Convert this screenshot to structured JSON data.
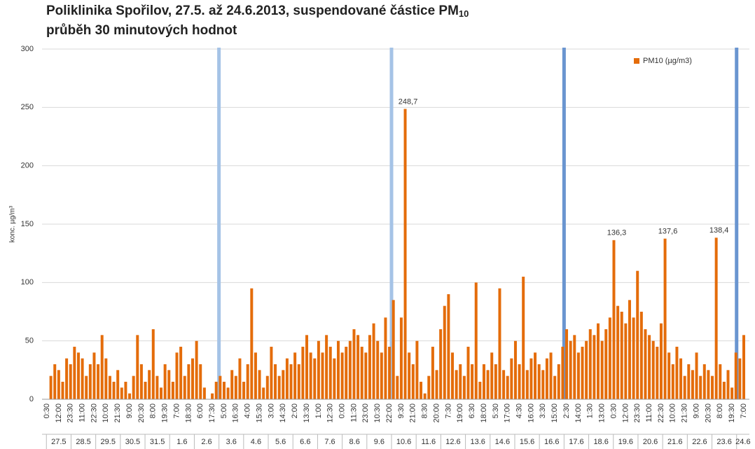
{
  "chart_data": {
    "type": "bar",
    "title": "Poliklinika Spořilov, 27.5. až 24.6.2013, suspendované částice PM",
    "title_subscript": "10",
    "subtitle": "průběh 30 minutových hodnot",
    "y_label": "konc. µg/m³",
    "categories": [
      "0:30",
      null,
      null,
      "12:00",
      null,
      null,
      "23:30",
      null,
      null,
      "11:00",
      null,
      null,
      "22:30",
      null,
      null,
      "10:00",
      null,
      null,
      "21:30",
      null,
      null,
      "9:00",
      null,
      null,
      "20:30",
      null,
      null,
      "8:00",
      null,
      null,
      "19:30",
      null,
      null,
      "7:00",
      null,
      null,
      "18:30",
      null,
      null,
      "6:00",
      null,
      null,
      "17:30",
      null,
      null,
      "5:00",
      null,
      null,
      "16:30",
      null,
      null,
      "4:00",
      null,
      null,
      "15:30",
      null,
      null,
      "3:00",
      null,
      null,
      "14:30",
      null,
      null,
      "2:00",
      null,
      null,
      "13:30",
      null,
      null,
      "1:00",
      null,
      null,
      "12:30",
      null,
      null,
      "0:00",
      null,
      null,
      "11:30",
      null,
      null,
      "23:00",
      null,
      null,
      "10:30",
      null,
      null,
      "22:00",
      null,
      null,
      "9:30",
      null,
      null,
      "21:00",
      null,
      null,
      "8:30",
      null,
      null,
      "20:00",
      null,
      null,
      "7:30",
      null,
      null,
      "19:00",
      null,
      null,
      "6:30",
      null,
      null,
      "18:00",
      null,
      null,
      "5:30",
      null,
      null,
      "17:00",
      null,
      null,
      "4:30",
      null,
      null,
      "16:00",
      null,
      null,
      "3:30",
      null,
      null,
      "15:00",
      null,
      null,
      "2:30",
      null,
      null,
      "14:00",
      null,
      null,
      "1:30",
      null,
      null,
      "13:00",
      null,
      null,
      "0:30",
      null,
      null,
      "12:00",
      null,
      null,
      "23:30",
      null,
      null,
      "11:00",
      null,
      null,
      "22:30",
      null,
      null,
      "10:00",
      null,
      null,
      "21:30",
      null,
      null,
      "9:00",
      null,
      null,
      "20:30",
      null,
      null,
      "8:00",
      null,
      null,
      "19:30",
      null,
      null,
      "7:00"
    ],
    "dates": [
      "27.5",
      "28.5",
      "29.5",
      "30.5",
      "31.5",
      "1.6",
      "2.6",
      "3.6",
      "4.6",
      "5.6",
      "6.6",
      "7.6",
      "8.6",
      "9.6",
      "10.6",
      "11.6",
      "12.6",
      "13.6",
      "14.6",
      "15.6",
      "16.6",
      "17.6",
      "18.6",
      "19.6",
      "20.6",
      "21.6",
      "22.6",
      "23.6",
      "24.6"
    ],
    "series": [
      {
        "name": "PM10 (µg/m3)",
        "color": "#e46c0a",
        "values": [
          0,
          20,
          30,
          25,
          15,
          35,
          30,
          45,
          40,
          35,
          20,
          30,
          40,
          30,
          55,
          35,
          20,
          15,
          25,
          10,
          15,
          5,
          20,
          55,
          30,
          15,
          25,
          60,
          20,
          10,
          30,
          25,
          15,
          40,
          45,
          20,
          30,
          35,
          50,
          30,
          10,
          0,
          5,
          15,
          20,
          15,
          10,
          25,
          20,
          35,
          15,
          30,
          95,
          40,
          25,
          10,
          20,
          45,
          30,
          20,
          25,
          35,
          30,
          40,
          30,
          45,
          55,
          40,
          35,
          50,
          40,
          55,
          45,
          35,
          50,
          40,
          45,
          50,
          60,
          55,
          45,
          40,
          55,
          65,
          50,
          40,
          70,
          45,
          85,
          20,
          70,
          248.7,
          40,
          30,
          50,
          15,
          5,
          20,
          45,
          25,
          60,
          80,
          90,
          40,
          25,
          30,
          20,
          45,
          30,
          100,
          15,
          30,
          25,
          40,
          30,
          95,
          25,
          20,
          35,
          50,
          30,
          105,
          25,
          35,
          40,
          30,
          25,
          35,
          40,
          20,
          30,
          45,
          60,
          50,
          55,
          40,
          45,
          50,
          60,
          55,
          65,
          50,
          60,
          70,
          136.3,
          80,
          75,
          65,
          85,
          70,
          110,
          75,
          60,
          55,
          50,
          45,
          65,
          137.6,
          40,
          30,
          45,
          35,
          20,
          30,
          25,
          40,
          20,
          30,
          25,
          20,
          138.4,
          30,
          15,
          25,
          10,
          40,
          35,
          55
        ],
        "value_labels": [
          null,
          null,
          null,
          null,
          null,
          null,
          null,
          null,
          null,
          null,
          null,
          null,
          null,
          null,
          null,
          null,
          null,
          null,
          null,
          null,
          null,
          null,
          null,
          null,
          null,
          null,
          null,
          null,
          null,
          null,
          null,
          null,
          null,
          null,
          null,
          null,
          null,
          null,
          null,
          null,
          null,
          null,
          null,
          null,
          null,
          null,
          null,
          null,
          null,
          null,
          null,
          null,
          null,
          null,
          null,
          null,
          null,
          null,
          null,
          null,
          null,
          null,
          null,
          null,
          null,
          null,
          null,
          null,
          null,
          null,
          null,
          null,
          null,
          null,
          null,
          null,
          null,
          null,
          null,
          null,
          null,
          null,
          null,
          null,
          null,
          null,
          null,
          null,
          null,
          null,
          null,
          "248,7",
          null,
          null,
          null,
          null,
          null,
          null,
          null,
          null,
          null,
          null,
          null,
          null,
          null,
          null,
          null,
          null,
          null,
          null,
          null,
          null,
          null,
          null,
          null,
          null,
          null,
          null,
          null,
          null,
          null,
          null,
          null,
          null,
          null,
          null,
          null,
          null,
          null,
          null,
          null,
          null,
          null,
          null,
          null,
          null,
          null,
          null,
          null,
          null,
          null,
          null,
          null,
          null,
          "136,3",
          null,
          null,
          null,
          null,
          null,
          null,
          null,
          null,
          null,
          null,
          null,
          null,
          "137,6",
          null,
          null,
          null,
          null,
          null,
          null,
          null,
          null,
          null,
          null,
          null,
          null,
          "138,4",
          null,
          null,
          null,
          null,
          null,
          null,
          null
        ]
      }
    ],
    "ylim": [
      0,
      300
    ],
    "yticks": [
      0,
      50,
      100,
      150,
      200,
      250,
      300
    ],
    "grid": true,
    "legend": "top-right"
  }
}
